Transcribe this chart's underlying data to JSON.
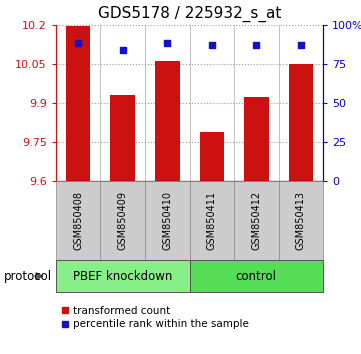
{
  "title": "GDS5178 / 225932_s_at",
  "samples": [
    "GSM850408",
    "GSM850409",
    "GSM850410",
    "GSM850411",
    "GSM850412",
    "GSM850413"
  ],
  "red_values": [
    10.197,
    9.93,
    10.062,
    9.787,
    9.92,
    10.048
  ],
  "blue_values": [
    88,
    84,
    88,
    87,
    87,
    87
  ],
  "ylim_left": [
    9.6,
    10.2
  ],
  "ylim_right": [
    0,
    100
  ],
  "yticks_left": [
    9.6,
    9.75,
    9.9,
    10.05,
    10.2
  ],
  "ytick_labels_left": [
    "9.6",
    "9.75",
    "9.9",
    "10.05",
    "10.2"
  ],
  "yticks_right": [
    0,
    25,
    50,
    75,
    100
  ],
  "ytick_labels_right": [
    "0",
    "25",
    "50",
    "75",
    "100%"
  ],
  "groups": [
    {
      "label": "PBEF knockdown",
      "indices": [
        0,
        1,
        2
      ],
      "color": "#88ee88"
    },
    {
      "label": "control",
      "indices": [
        3,
        4,
        5
      ],
      "color": "#55dd55"
    }
  ],
  "protocol_label": "protocol",
  "bar_color": "#cc1111",
  "dot_color": "#1111cc",
  "bar_width": 0.55,
  "legend_items": [
    {
      "color": "#cc1111",
      "label": "transformed count"
    },
    {
      "color": "#1111cc",
      "label": "percentile rank within the sample"
    }
  ],
  "grid_color": "#999999",
  "axis_color_left": "#cc1111",
  "axis_color_right": "#0000cc",
  "group_box_color": "#cccccc",
  "title_fontsize": 11,
  "tick_fontsize": 8,
  "sample_fontsize": 7,
  "legend_fontsize": 7.5,
  "group_fontsize": 8.5
}
